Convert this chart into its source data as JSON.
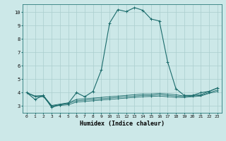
{
  "xlabel": "Humidex (Indice chaleur)",
  "bg_color": "#cce8e8",
  "line_color": "#1a6b6b",
  "grid_color": "#aacece",
  "xlim": [
    -0.5,
    23.5
  ],
  "ylim": [
    2.5,
    10.6
  ],
  "xticks": [
    0,
    1,
    2,
    3,
    4,
    5,
    6,
    7,
    8,
    9,
    10,
    11,
    12,
    13,
    14,
    15,
    16,
    17,
    18,
    19,
    20,
    21,
    22,
    23
  ],
  "yticks": [
    3,
    4,
    5,
    6,
    7,
    8,
    9,
    10
  ],
  "series1": [
    [
      0,
      4.0
    ],
    [
      1,
      3.5
    ],
    [
      2,
      3.8
    ],
    [
      3,
      2.9
    ],
    [
      4,
      3.1
    ],
    [
      5,
      3.2
    ],
    [
      6,
      4.0
    ],
    [
      7,
      3.7
    ],
    [
      8,
      4.1
    ],
    [
      9,
      5.7
    ],
    [
      10,
      9.2
    ],
    [
      11,
      10.2
    ],
    [
      12,
      10.05
    ],
    [
      13,
      10.35
    ],
    [
      14,
      10.15
    ],
    [
      15,
      9.5
    ],
    [
      16,
      9.35
    ],
    [
      17,
      6.3
    ],
    [
      18,
      4.3
    ],
    [
      19,
      3.8
    ],
    [
      20,
      3.8
    ],
    [
      21,
      4.0
    ],
    [
      22,
      4.1
    ],
    [
      23,
      4.35
    ]
  ],
  "series2": [
    [
      0,
      4.0
    ],
    [
      1,
      3.75
    ],
    [
      2,
      3.8
    ],
    [
      3,
      3.05
    ],
    [
      4,
      3.15
    ],
    [
      5,
      3.25
    ],
    [
      6,
      3.5
    ],
    [
      7,
      3.55
    ],
    [
      8,
      3.6
    ],
    [
      9,
      3.65
    ],
    [
      10,
      3.7
    ],
    [
      11,
      3.75
    ],
    [
      12,
      3.8
    ],
    [
      13,
      3.85
    ],
    [
      14,
      3.9
    ],
    [
      15,
      3.9
    ],
    [
      16,
      3.95
    ],
    [
      17,
      3.9
    ],
    [
      18,
      3.85
    ],
    [
      19,
      3.75
    ],
    [
      20,
      3.8
    ],
    [
      21,
      3.85
    ],
    [
      22,
      4.1
    ],
    [
      23,
      4.35
    ]
  ],
  "series3": [
    [
      0,
      4.0
    ],
    [
      1,
      3.75
    ],
    [
      2,
      3.75
    ],
    [
      3,
      3.0
    ],
    [
      4,
      3.1
    ],
    [
      5,
      3.2
    ],
    [
      6,
      3.4
    ],
    [
      7,
      3.45
    ],
    [
      8,
      3.5
    ],
    [
      9,
      3.55
    ],
    [
      10,
      3.6
    ],
    [
      11,
      3.65
    ],
    [
      12,
      3.7
    ],
    [
      13,
      3.75
    ],
    [
      14,
      3.8
    ],
    [
      15,
      3.8
    ],
    [
      16,
      3.85
    ],
    [
      17,
      3.8
    ],
    [
      18,
      3.75
    ],
    [
      19,
      3.7
    ],
    [
      20,
      3.75
    ],
    [
      21,
      3.8
    ],
    [
      22,
      4.0
    ],
    [
      23,
      4.2
    ]
  ],
  "series4": [
    [
      0,
      4.0
    ],
    [
      1,
      3.7
    ],
    [
      2,
      3.7
    ],
    [
      3,
      3.0
    ],
    [
      4,
      3.05
    ],
    [
      5,
      3.1
    ],
    [
      6,
      3.3
    ],
    [
      7,
      3.35
    ],
    [
      8,
      3.4
    ],
    [
      9,
      3.45
    ],
    [
      10,
      3.5
    ],
    [
      11,
      3.55
    ],
    [
      12,
      3.6
    ],
    [
      13,
      3.65
    ],
    [
      14,
      3.7
    ],
    [
      15,
      3.72
    ],
    [
      16,
      3.75
    ],
    [
      17,
      3.7
    ],
    [
      18,
      3.65
    ],
    [
      19,
      3.65
    ],
    [
      20,
      3.7
    ],
    [
      21,
      3.75
    ],
    [
      22,
      3.95
    ],
    [
      23,
      4.1
    ]
  ]
}
